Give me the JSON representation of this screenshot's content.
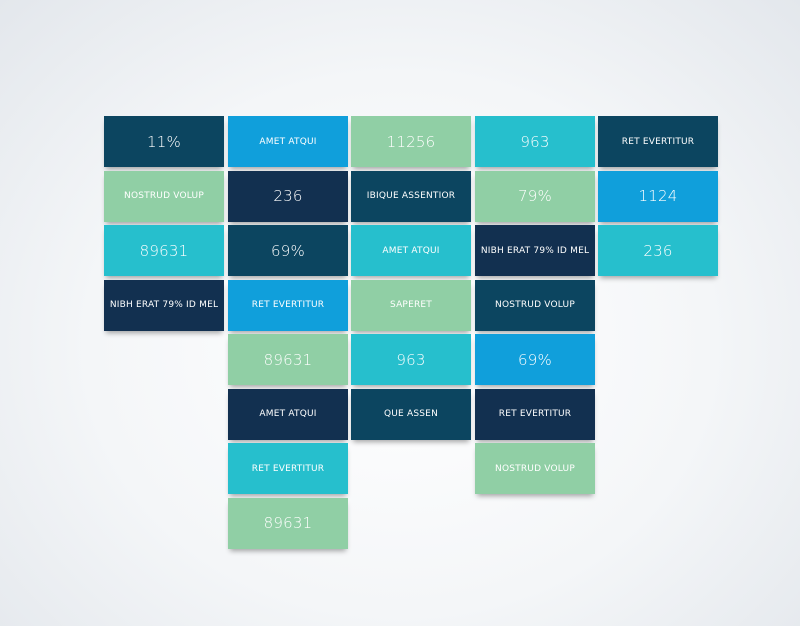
{
  "colors": {
    "dark_teal": "#0c4560",
    "blue": "#109fdb",
    "green": "#90cfa5",
    "navy": "#123050",
    "cyan": "#26bfcd"
  },
  "columns": [
    [
      {
        "label": "11%",
        "color": "dark_teal",
        "kind": "num"
      },
      {
        "label": "NOSTRUD VOLUP",
        "color": "green",
        "kind": "txt"
      },
      {
        "label": "89631",
        "color": "cyan",
        "kind": "num"
      },
      {
        "label": "NIBH ERAT 79% ID MEL",
        "color": "navy",
        "kind": "txt"
      }
    ],
    [
      {
        "label": "AMET ATQUI",
        "color": "blue",
        "kind": "txt"
      },
      {
        "label": "236",
        "color": "navy",
        "kind": "num"
      },
      {
        "label": "69%",
        "color": "dark_teal",
        "kind": "num"
      },
      {
        "label": "RET EVERTITUR",
        "color": "blue",
        "kind": "txt"
      },
      {
        "label": "89631",
        "color": "green",
        "kind": "num"
      },
      {
        "label": "AMET ATQUI",
        "color": "navy",
        "kind": "txt"
      },
      {
        "label": "RET EVERTITUR",
        "color": "cyan",
        "kind": "txt"
      },
      {
        "label": "89631",
        "color": "green",
        "kind": "num"
      }
    ],
    [
      {
        "label": "11256",
        "color": "green",
        "kind": "num"
      },
      {
        "label": "IBIQUE ASSENTIOR",
        "color": "dark_teal",
        "kind": "txt"
      },
      {
        "label": "AMET ATQUI",
        "color": "cyan",
        "kind": "txt"
      },
      {
        "label": "SAPERET",
        "color": "green",
        "kind": "txt"
      },
      {
        "label": "963",
        "color": "cyan",
        "kind": "num"
      },
      {
        "label": "QUE ASSEN",
        "color": "dark_teal",
        "kind": "txt"
      }
    ],
    [
      {
        "label": "963",
        "color": "cyan",
        "kind": "num"
      },
      {
        "label": "79%",
        "color": "green",
        "kind": "num"
      },
      {
        "label": "NIBH ERAT 79% ID MEL",
        "color": "navy",
        "kind": "txt"
      },
      {
        "label": "NOSTRUD VOLUP",
        "color": "dark_teal",
        "kind": "txt"
      },
      {
        "label": "69%",
        "color": "blue",
        "kind": "num"
      },
      {
        "label": "RET EVERTITUR",
        "color": "navy",
        "kind": "txt"
      },
      {
        "label": "NOSTRUD VOLUP",
        "color": "green",
        "kind": "txt"
      }
    ],
    [
      {
        "label": "RET EVERTITUR",
        "color": "dark_teal",
        "kind": "txt"
      },
      {
        "label": "1124",
        "color": "blue",
        "kind": "num"
      },
      {
        "label": "236",
        "color": "cyan",
        "kind": "num"
      }
    ]
  ]
}
